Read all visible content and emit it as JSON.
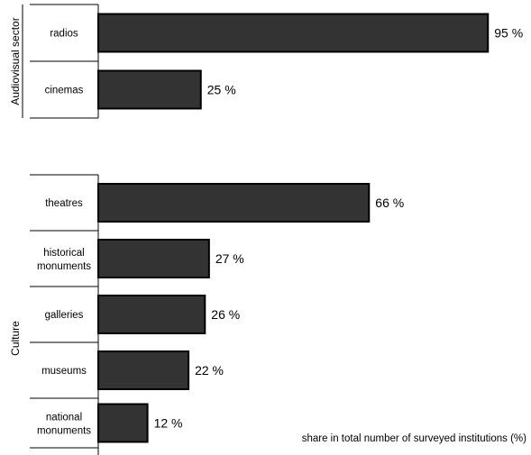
{
  "chart_data": {
    "type": "bar",
    "orientation": "horizontal",
    "groups": [
      {
        "name": "Audiovisual sector",
        "items": [
          {
            "category": "radios",
            "value": 95,
            "label": "95 %"
          },
          {
            "category": "cinemas",
            "value": 25,
            "label": "25 %"
          }
        ]
      },
      {
        "name": "Culture",
        "items": [
          {
            "category": "theatres",
            "value": 66,
            "label": "66 %"
          },
          {
            "category": "historical monuments",
            "value": 27,
            "label": "27 %"
          },
          {
            "category": "galleries",
            "value": 26,
            "label": "26 %"
          },
          {
            "category": "museums",
            "value": 22,
            "label": "22 %"
          },
          {
            "category": "national monuments",
            "value": 12,
            "label": "12 %"
          }
        ]
      }
    ],
    "xlabel": "share in total number of surveyed institutions (%)",
    "xlim": [
      0,
      100
    ],
    "bar_color": "#333333",
    "grid": false
  }
}
